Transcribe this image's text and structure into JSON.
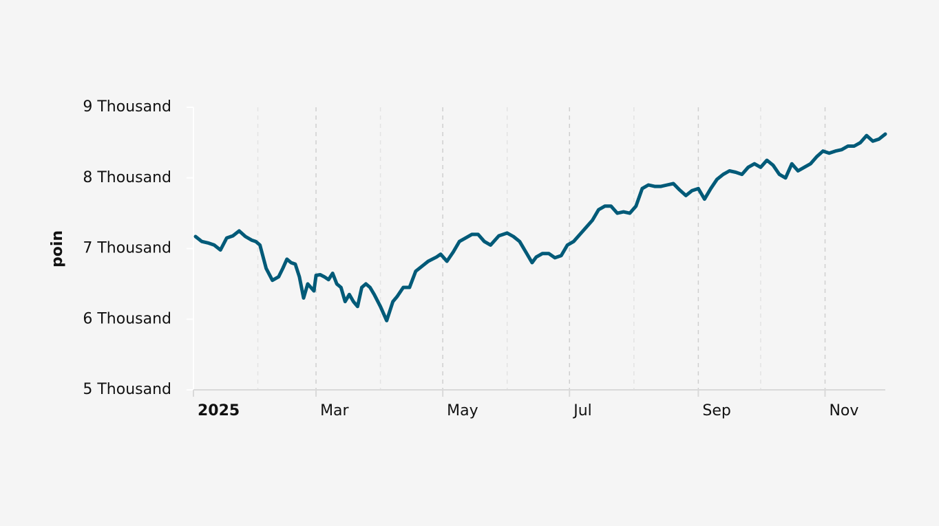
{
  "chart_data": {
    "type": "line",
    "ylabel": "poin",
    "xlabel": "",
    "ylim": [
      5000,
      9000
    ],
    "xlim": [
      "2025-01-01",
      "2025-11-30"
    ],
    "grid": {
      "x_major": true,
      "x_minor": true,
      "y": false,
      "style": "dashed"
    },
    "line_color": "#005a78",
    "y_ticks": [
      {
        "value": 5000,
        "label": "5 Thousand"
      },
      {
        "value": 6000,
        "label": "6 Thousand"
      },
      {
        "value": 7000,
        "label": "7 Thousand"
      },
      {
        "value": 8000,
        "label": "8 Thousand"
      },
      {
        "value": 9000,
        "label": "9 Thousand"
      }
    ],
    "x_ticks": [
      {
        "date": "2025-01-01",
        "label": "2025",
        "bold": true
      },
      {
        "date": "2025-03-01",
        "label": "Mar"
      },
      {
        "date": "2025-05-01",
        "label": "May"
      },
      {
        "date": "2025-07-01",
        "label": "Jul"
      },
      {
        "date": "2025-09-01",
        "label": "Sep"
      },
      {
        "date": "2025-11-01",
        "label": "Nov"
      }
    ],
    "x_minor_ticks": [
      "2025-02-01",
      "2025-04-01",
      "2025-06-01",
      "2025-08-01",
      "2025-10-01",
      "2025-12-01"
    ],
    "series": [
      {
        "x": [
          "2025-01-02",
          "2025-01-05",
          "2025-01-08",
          "2025-01-11",
          "2025-01-14",
          "2025-01-17",
          "2025-01-20",
          "2025-01-23",
          "2025-01-26",
          "2025-01-29",
          "2025-01-31",
          "2025-02-02",
          "2025-02-05",
          "2025-02-08",
          "2025-02-11",
          "2025-02-13",
          "2025-02-15",
          "2025-02-17",
          "2025-02-19",
          "2025-02-21",
          "2025-02-23",
          "2025-02-25",
          "2025-02-28",
          "2025-03-01",
          "2025-03-03",
          "2025-03-05",
          "2025-03-07",
          "2025-03-09",
          "2025-03-11",
          "2025-03-13",
          "2025-03-15",
          "2025-03-17",
          "2025-03-19",
          "2025-03-21",
          "2025-03-23",
          "2025-03-25",
          "2025-03-27",
          "2025-03-29",
          "2025-04-01",
          "2025-04-04",
          "2025-04-07",
          "2025-04-09",
          "2025-04-12",
          "2025-04-15",
          "2025-04-18",
          "2025-04-21",
          "2025-04-24",
          "2025-04-28",
          "2025-04-30",
          "2025-05-03",
          "2025-05-06",
          "2025-05-09",
          "2025-05-12",
          "2025-05-15",
          "2025-05-18",
          "2025-05-21",
          "2025-05-24",
          "2025-05-28",
          "2025-06-01",
          "2025-06-04",
          "2025-06-07",
          "2025-06-10",
          "2025-06-13",
          "2025-06-15",
          "2025-06-18",
          "2025-06-21",
          "2025-06-24",
          "2025-06-27",
          "2025-06-30",
          "2025-07-03",
          "2025-07-06",
          "2025-07-09",
          "2025-07-12",
          "2025-07-15",
          "2025-07-18",
          "2025-07-21",
          "2025-07-24",
          "2025-07-27",
          "2025-07-30",
          "2025-08-02",
          "2025-08-05",
          "2025-08-08",
          "2025-08-11",
          "2025-08-14",
          "2025-08-17",
          "2025-08-20",
          "2025-08-23",
          "2025-08-26",
          "2025-08-29",
          "2025-09-01",
          "2025-09-04",
          "2025-09-07",
          "2025-09-10",
          "2025-09-13",
          "2025-09-16",
          "2025-09-19",
          "2025-09-22",
          "2025-09-25",
          "2025-09-28",
          "2025-10-01",
          "2025-10-04",
          "2025-10-07",
          "2025-10-10",
          "2025-10-13",
          "2025-10-16",
          "2025-10-19",
          "2025-10-22",
          "2025-10-25",
          "2025-10-28",
          "2025-10-31",
          "2025-11-03",
          "2025-11-06",
          "2025-11-09",
          "2025-11-12",
          "2025-11-15",
          "2025-11-18",
          "2025-11-21",
          "2025-11-24",
          "2025-11-27",
          "2025-11-30"
        ],
        "y": [
          7170,
          7100,
          7080,
          7050,
          6980,
          7150,
          7180,
          7250,
          7170,
          7120,
          7100,
          7050,
          6720,
          6550,
          6600,
          6720,
          6850,
          6800,
          6780,
          6600,
          6300,
          6500,
          6400,
          6620,
          6630,
          6600,
          6560,
          6650,
          6500,
          6450,
          6250,
          6350,
          6250,
          6180,
          6450,
          6500,
          6450,
          6350,
          6180,
          5980,
          6250,
          6320,
          6450,
          6450,
          6680,
          6750,
          6820,
          6880,
          6920,
          6820,
          6950,
          7100,
          7150,
          7200,
          7200,
          7100,
          7050,
          7180,
          7220,
          7170,
          7100,
          6950,
          6800,
          6880,
          6930,
          6930,
          6870,
          6900,
          7050,
          7100,
          7200,
          7300,
          7400,
          7550,
          7600,
          7600,
          7500,
          7520,
          7500,
          7600,
          7850,
          7900,
          7880,
          7880,
          7900,
          7920,
          7830,
          7750,
          7820,
          7850,
          7700,
          7850,
          7980,
          8050,
          8100,
          8080,
          8050,
          8150,
          8200,
          8150,
          8250,
          8180,
          8050,
          8000,
          8200,
          8100,
          8150,
          8200,
          8300,
          8380,
          8350,
          8380,
          8400,
          8450,
          8450,
          8500,
          8600,
          8520,
          8550,
          8620
        ]
      }
    ]
  }
}
